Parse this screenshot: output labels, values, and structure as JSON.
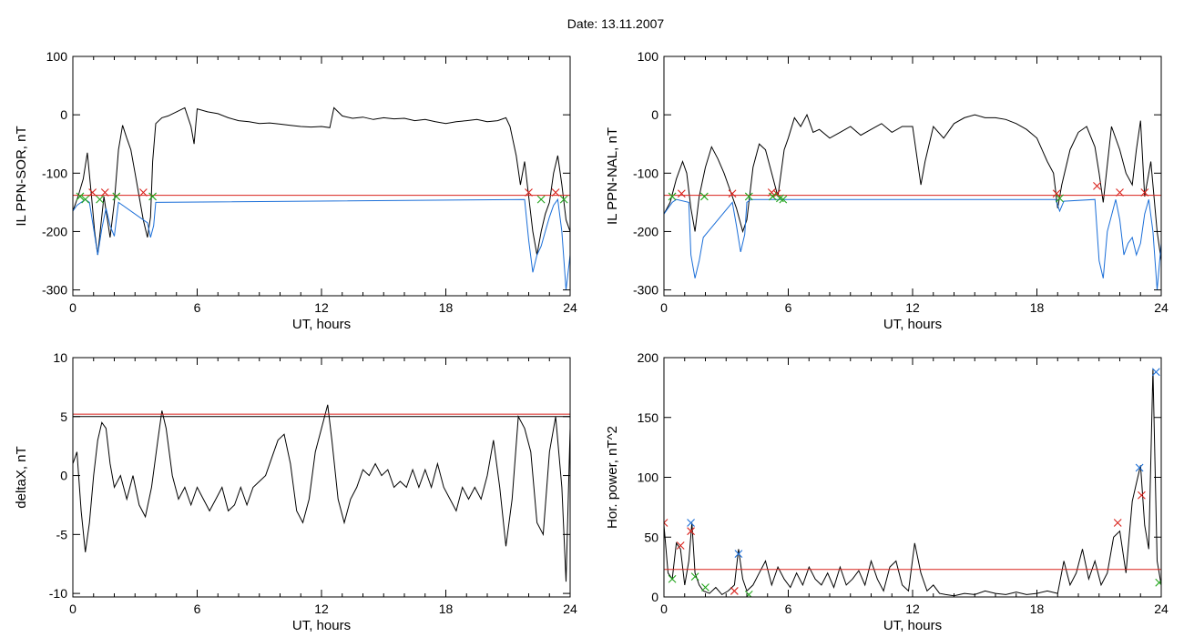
{
  "figure": {
    "title": "Date:  13.11.2007"
  },
  "chart_data": [
    {
      "type": "line",
      "ylabel": "IL PPN-SOR, nT",
      "xlabel": "UT, hours",
      "xlim": [
        0,
        24
      ],
      "ylim": [
        -310,
        100
      ],
      "x_ticks": [
        0,
        6,
        12,
        18,
        24
      ],
      "y_ticks": [
        100,
        0,
        -100,
        -200,
        -300
      ],
      "threshold": -138,
      "series": [
        {
          "color": "#000000",
          "x": [
            0,
            0.25,
            0.5,
            0.7,
            0.9,
            1.05,
            1.2,
            1.35,
            1.5,
            1.65,
            1.8,
            2.0,
            2.2,
            2.4,
            2.6,
            2.8,
            3.0,
            3.2,
            3.4,
            3.6,
            3.75,
            3.85,
            4.0,
            4.3,
            4.6,
            5.0,
            5.4,
            5.7,
            5.85,
            6.0,
            6.5,
            7.0,
            7.5,
            8.0,
            8.5,
            9.0,
            9.5,
            10.0,
            10.5,
            11.0,
            11.5,
            12.0,
            12.4,
            12.6,
            13.0,
            13.5,
            14.0,
            14.5,
            15.0,
            15.5,
            16.0,
            16.5,
            17.0,
            17.5,
            18.0,
            18.5,
            19.0,
            19.5,
            20.0,
            20.5,
            20.9,
            21.1,
            21.4,
            21.6,
            21.8,
            22.0,
            22.2,
            22.4,
            22.6,
            22.8,
            23.0,
            23.2,
            23.4,
            23.6,
            23.8,
            24.0
          ],
          "y": [
            -165,
            -140,
            -110,
            -65,
            -140,
            -200,
            -240,
            -190,
            -140,
            -175,
            -210,
            -150,
            -60,
            -18,
            -40,
            -60,
            -100,
            -140,
            -180,
            -210,
            -175,
            -80,
            -15,
            -5,
            -2,
            5,
            12,
            -20,
            -50,
            10,
            5,
            2,
            -5,
            -10,
            -12,
            -15,
            -14,
            -16,
            -18,
            -20,
            -21,
            -20,
            -22,
            12,
            -2,
            -6,
            -4,
            -8,
            -5,
            -7,
            -6,
            -10,
            -8,
            -12,
            -15,
            -12,
            -10,
            -8,
            -12,
            -10,
            -5,
            -20,
            -70,
            -120,
            -80,
            -140,
            -200,
            -240,
            -200,
            -170,
            -150,
            -100,
            -70,
            -120,
            -180,
            -200
          ]
        },
        {
          "color": "#1a6ed8",
          "x": [
            0,
            0.2,
            0.4,
            0.6,
            0.8,
            1.0,
            1.2,
            1.4,
            1.6,
            1.8,
            2.0,
            2.2,
            3.6,
            3.75,
            3.9,
            4.0,
            21.8,
            22.0,
            22.2,
            22.4,
            22.6,
            22.8,
            23.0,
            23.2,
            23.4,
            23.6,
            23.8,
            24.0
          ],
          "y": [
            -165,
            -155,
            -150,
            -145,
            -150,
            -195,
            -240,
            -195,
            -160,
            -190,
            -208,
            -150,
            -185,
            -210,
            -190,
            -150,
            -145,
            -215,
            -270,
            -240,
            -225,
            -200,
            -175,
            -155,
            -145,
            -200,
            -300,
            -240
          ]
        }
      ],
      "markers": [
        {
          "color": "#d9221c",
          "x": [
            0.95,
            1.55,
            3.4,
            22.0,
            23.3
          ],
          "y": [
            -133,
            -133,
            -133,
            -133,
            -133
          ]
        },
        {
          "color": "#22a51c",
          "x": [
            0.35,
            0.6,
            1.3,
            2.1,
            3.85,
            22.6,
            23.7
          ],
          "y": [
            -140,
            -145,
            -145,
            -140,
            -140,
            -145,
            -145
          ]
        }
      ]
    },
    {
      "type": "line",
      "ylabel": "IL PPN-NAL, nT",
      "xlabel": "UT, hours",
      "xlim": [
        0,
        24
      ],
      "ylim": [
        -310,
        100
      ],
      "x_ticks": [
        0,
        6,
        12,
        18,
        24
      ],
      "y_ticks": [
        100,
        0,
        -100,
        -200,
        -300
      ],
      "threshold": -138,
      "series": [
        {
          "color": "#000000",
          "x": [
            0,
            0.3,
            0.6,
            0.9,
            1.1,
            1.3,
            1.5,
            1.7,
            2.0,
            2.3,
            2.6,
            2.9,
            3.2,
            3.5,
            3.8,
            4.0,
            4.3,
            4.6,
            4.9,
            5.2,
            5.5,
            5.8,
            6.0,
            6.3,
            6.6,
            6.9,
            7.2,
            7.5,
            8.0,
            8.5,
            9.0,
            9.5,
            10.0,
            10.5,
            11.0,
            11.5,
            12.0,
            12.4,
            12.6,
            13.0,
            13.5,
            14.0,
            14.5,
            15.0,
            15.5,
            16.0,
            16.5,
            17.0,
            17.5,
            18.0,
            18.5,
            18.8,
            19.0,
            19.2,
            19.6,
            20.0,
            20.4,
            20.8,
            21.0,
            21.2,
            21.6,
            22.0,
            22.3,
            22.6,
            22.8,
            23.0,
            23.2,
            23.5,
            23.8,
            24.0
          ],
          "y": [
            -170,
            -150,
            -110,
            -80,
            -100,
            -160,
            -200,
            -140,
            -90,
            -55,
            -75,
            -100,
            -130,
            -160,
            -200,
            -180,
            -90,
            -50,
            -60,
            -100,
            -140,
            -60,
            -40,
            -5,
            -20,
            0,
            -30,
            -25,
            -40,
            -30,
            -20,
            -35,
            -25,
            -15,
            -30,
            -20,
            -20,
            -120,
            -80,
            -20,
            -40,
            -15,
            -5,
            0,
            -5,
            -5,
            -8,
            -15,
            -25,
            -40,
            -80,
            -100,
            -160,
            -120,
            -60,
            -30,
            -20,
            -55,
            -100,
            -150,
            -20,
            -60,
            -100,
            -120,
            -60,
            -10,
            -140,
            -80,
            -200,
            -250
          ]
        },
        {
          "color": "#1a6ed8",
          "x": [
            0,
            0.2,
            0.4,
            0.6,
            1.2,
            1.3,
            1.5,
            1.7,
            1.9,
            3.3,
            3.5,
            3.7,
            3.9,
            4.0,
            4.2,
            18.9,
            19.1,
            19.3,
            20.8,
            21.0,
            21.2,
            21.4,
            21.8,
            22.0,
            22.2,
            22.4,
            22.6,
            22.8,
            23.0,
            23.2,
            23.4,
            23.6,
            23.8,
            24.0
          ],
          "y": [
            -170,
            -160,
            -150,
            -145,
            -150,
            -240,
            -280,
            -250,
            -210,
            -150,
            -190,
            -235,
            -205,
            -150,
            -145,
            -145,
            -165,
            -148,
            -145,
            -250,
            -280,
            -200,
            -145,
            -180,
            -240,
            -220,
            -210,
            -240,
            -220,
            -170,
            -145,
            -200,
            -300,
            -220
          ]
        }
      ],
      "markers": [
        {
          "color": "#d9221c",
          "x": [
            0.85,
            3.3,
            5.2,
            5.45,
            18.95,
            20.9,
            22.0,
            23.2
          ],
          "y": [
            -135,
            -135,
            -133,
            -135,
            -135,
            -122,
            -133,
            -133
          ]
        },
        {
          "color": "#22a51c",
          "x": [
            0.4,
            1.95,
            4.1,
            5.25,
            5.6,
            5.75,
            19.1
          ],
          "y": [
            -140,
            -140,
            -140,
            -140,
            -143,
            -145,
            -143
          ]
        }
      ]
    },
    {
      "type": "line",
      "ylabel": "deltaX, nT",
      "xlabel": "UT, hours",
      "xlim": [
        0,
        24
      ],
      "ylim": [
        -10.3,
        10
      ],
      "x_ticks": [
        0,
        6,
        12,
        18,
        24
      ],
      "y_ticks": [
        10,
        5,
        0,
        -5,
        -10
      ],
      "threshold": 5.2,
      "series": [
        {
          "color": "#000000",
          "x": [
            0,
            0.2,
            0.4,
            0.6,
            0.8,
            1.0,
            1.2,
            1.4,
            1.6,
            1.8,
            2.0,
            2.3,
            2.6,
            2.9,
            3.2,
            3.5,
            3.8,
            4.1,
            4.3,
            4.5,
            4.8,
            5.1,
            5.4,
            5.7,
            6.0,
            6.3,
            6.6,
            6.9,
            7.2,
            7.5,
            7.8,
            8.1,
            8.4,
            8.7,
            9.0,
            9.3,
            9.6,
            9.9,
            10.2,
            10.5,
            10.8,
            11.1,
            11.4,
            11.7,
            12.0,
            12.3,
            12.5,
            12.8,
            13.1,
            13.4,
            13.7,
            14.0,
            14.3,
            14.6,
            14.9,
            15.2,
            15.5,
            15.8,
            16.1,
            16.4,
            16.7,
            17.0,
            17.3,
            17.6,
            17.9,
            18.2,
            18.5,
            18.8,
            19.1,
            19.4,
            19.7,
            20.0,
            20.3,
            20.6,
            20.9,
            21.2,
            21.5,
            21.8,
            22.1,
            22.4,
            22.7,
            23.0,
            23.3,
            23.6,
            23.8,
            24.0
          ],
          "y": [
            1,
            2,
            -3,
            -6.5,
            -4,
            0,
            3,
            4.5,
            4,
            1,
            -1,
            0,
            -2,
            0,
            -2.5,
            -3.5,
            -1,
            3,
            5.5,
            4,
            0,
            -2,
            -1,
            -2.5,
            -1,
            -2,
            -3,
            -2,
            -1,
            -3,
            -2.5,
            -1,
            -2.5,
            -1,
            -0.5,
            0,
            1.5,
            3,
            3.5,
            1,
            -3,
            -4,
            -2,
            2,
            4,
            6,
            3,
            -2,
            -4,
            -2,
            -1,
            0.5,
            0,
            1,
            0,
            0.5,
            -1,
            -0.5,
            -1,
            0.5,
            -1,
            0.5,
            -1,
            1,
            -1,
            -2,
            -3,
            -1,
            -2,
            -1,
            -2,
            0,
            3,
            -1,
            -6,
            -2,
            5,
            4,
            2,
            -4,
            -5,
            2,
            5,
            -1,
            -9,
            4
          ]
        }
      ],
      "markers": [],
      "extra_hline": {
        "value": 5.0,
        "color": "#000000"
      }
    },
    {
      "type": "line",
      "ylabel": "Hor. power, nT^2",
      "xlabel": "UT, hours",
      "xlim": [
        0,
        24
      ],
      "ylim": [
        0,
        200
      ],
      "x_ticks": [
        0,
        6,
        12,
        18,
        24
      ],
      "y_ticks": [
        200,
        150,
        100,
        50,
        0
      ],
      "threshold": 23,
      "series": [
        {
          "color": "#000000",
          "x": [
            0,
            0.2,
            0.4,
            0.6,
            0.8,
            1.0,
            1.2,
            1.35,
            1.5,
            1.7,
            1.9,
            2.2,
            2.5,
            2.8,
            3.1,
            3.4,
            3.6,
            3.8,
            4.0,
            4.3,
            4.6,
            4.9,
            5.2,
            5.5,
            5.8,
            6.1,
            6.4,
            6.7,
            7.0,
            7.3,
            7.6,
            7.9,
            8.2,
            8.5,
            8.8,
            9.1,
            9.4,
            9.7,
            10.0,
            10.3,
            10.6,
            10.9,
            11.2,
            11.5,
            11.8,
            12.1,
            12.4,
            12.7,
            13.0,
            13.3,
            13.6,
            14.0,
            14.5,
            15.0,
            15.5,
            16.0,
            16.5,
            17.0,
            17.5,
            18.0,
            18.5,
            19.0,
            19.3,
            19.6,
            19.9,
            20.2,
            20.5,
            20.8,
            21.1,
            21.4,
            21.7,
            22.0,
            22.3,
            22.6,
            22.8,
            23.0,
            23.2,
            23.4,
            23.6,
            23.8,
            24.0
          ],
          "y": [
            60,
            20,
            15,
            45,
            40,
            10,
            30,
            62,
            20,
            10,
            5,
            3,
            8,
            2,
            5,
            10,
            40,
            15,
            5,
            10,
            20,
            30,
            10,
            25,
            15,
            8,
            20,
            10,
            25,
            15,
            10,
            20,
            8,
            25,
            10,
            15,
            22,
            10,
            30,
            15,
            5,
            25,
            30,
            10,
            5,
            45,
            20,
            5,
            10,
            3,
            2,
            1,
            3,
            2,
            5,
            3,
            2,
            4,
            2,
            3,
            5,
            3,
            30,
            10,
            20,
            40,
            15,
            30,
            10,
            20,
            50,
            55,
            20,
            80,
            95,
            110,
            60,
            40,
            190,
            30,
            10
          ]
        }
      ],
      "markers": [
        {
          "color": "#d9221c",
          "x": [
            0,
            0.8,
            1.3,
            3.4,
            21.9,
            23.05
          ],
          "y": [
            62,
            43,
            55,
            5,
            62,
            85
          ]
        },
        {
          "color": "#1a6ed8",
          "x": [
            1.3,
            3.6,
            22.95,
            23.75
          ],
          "y": [
            62,
            36,
            108,
            188
          ]
        },
        {
          "color": "#22a51c",
          "x": [
            0.4,
            1.5,
            2.0,
            4.1,
            23.9
          ],
          "y": [
            15,
            17,
            8,
            2,
            12
          ]
        }
      ]
    }
  ]
}
